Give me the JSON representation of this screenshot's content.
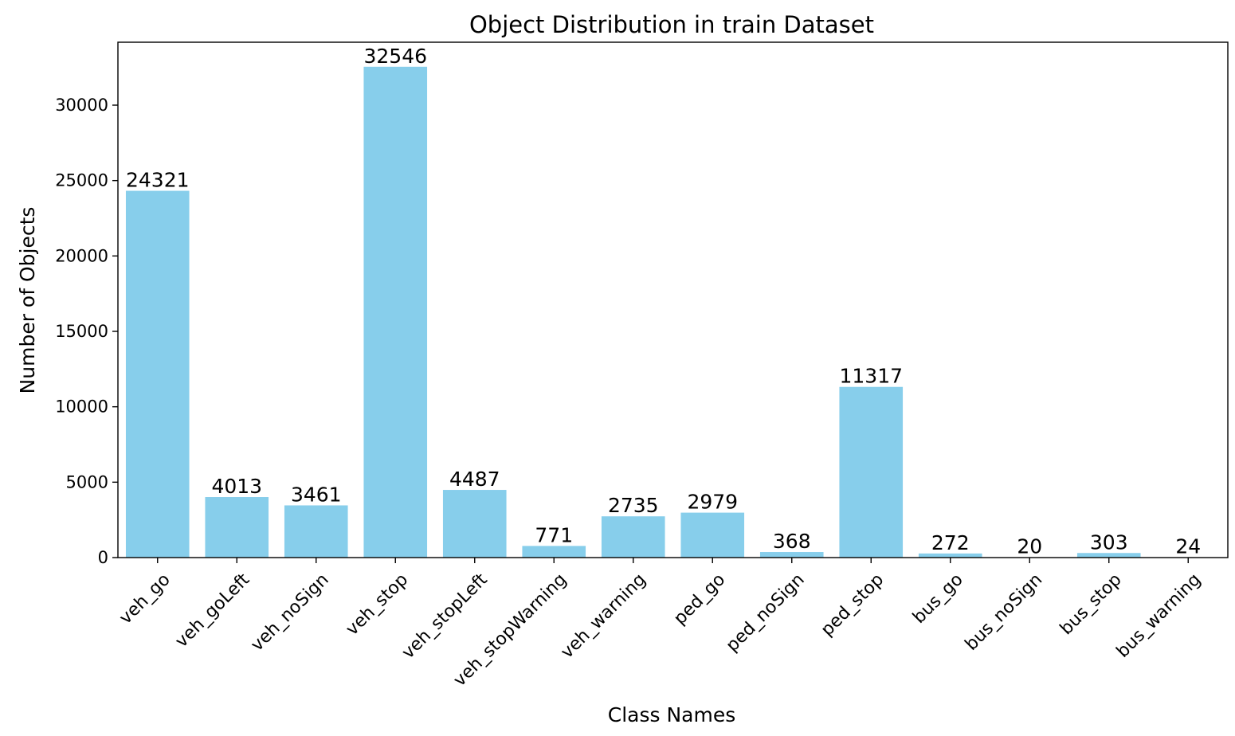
{
  "chart_data": {
    "type": "bar",
    "title": "Object Distribution in train Dataset",
    "xlabel": "Class Names",
    "ylabel": "Number of Objects",
    "categories": [
      "veh_go",
      "veh_goLeft",
      "veh_noSign",
      "veh_stop",
      "veh_stopLeft",
      "veh_stopWarning",
      "veh_warning",
      "ped_go",
      "ped_noSign",
      "ped_stop",
      "bus_go",
      "bus_noSign",
      "bus_stop",
      "bus_warning"
    ],
    "values": [
      24321,
      4013,
      3461,
      32546,
      4487,
      771,
      2735,
      2979,
      368,
      11317,
      272,
      20,
      303,
      24
    ],
    "data_labels": [
      "24321",
      "4013",
      "3461",
      "32546",
      "4487",
      "771",
      "2735",
      "2979",
      "368",
      "11317",
      "272",
      "20",
      "303",
      "24"
    ],
    "yticks": [
      0,
      5000,
      10000,
      15000,
      20000,
      25000,
      30000
    ],
    "ytick_labels": [
      "0",
      "5000",
      "10000",
      "15000",
      "20000",
      "25000",
      "30000"
    ],
    "ylim": [
      0,
      34173
    ],
    "bar_color": "#87ceeb",
    "grid": false,
    "legend": "none"
  }
}
